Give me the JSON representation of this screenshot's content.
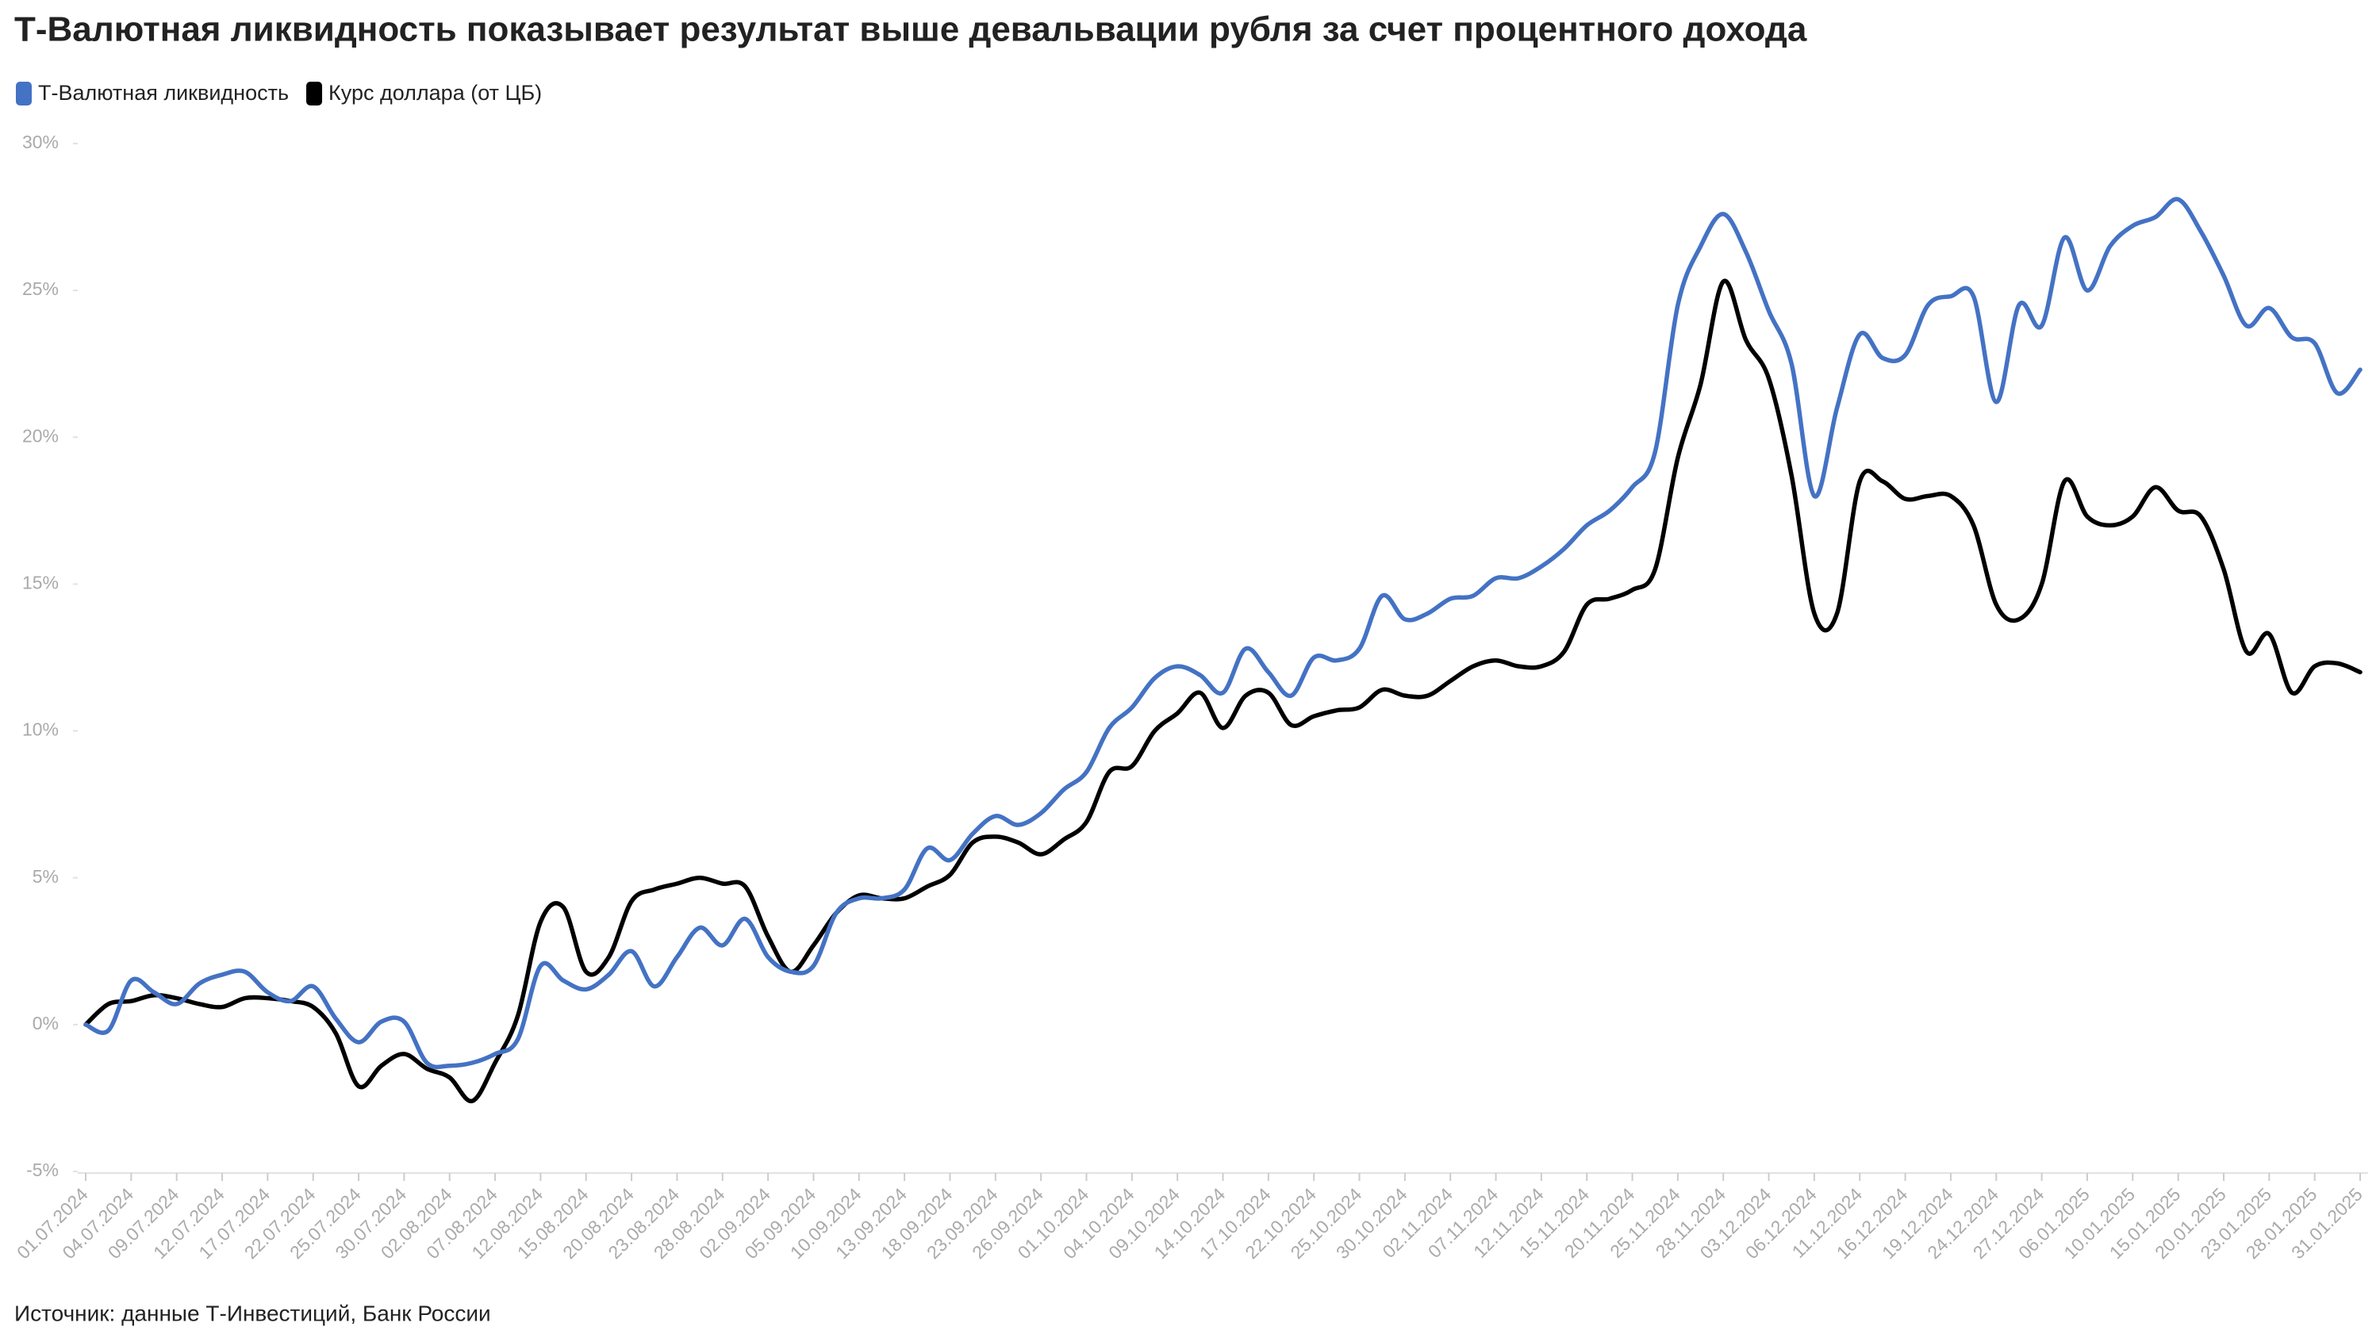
{
  "chart_data": {
    "type": "line",
    "title": "Т-Валютная ликвидность показывает результат выше девальвации рубля за счет процентного дохода",
    "source": "Источник: данные Т-Инвестиций, Банк России",
    "categories": [
      "01.07.2024",
      null,
      "04.07.2024",
      null,
      "09.07.2024",
      null,
      "12.07.2024",
      null,
      "17.07.2024",
      null,
      "22.07.2024",
      null,
      "25.07.2024",
      null,
      "30.07.2024",
      null,
      "02.08.2024",
      null,
      "07.08.2024",
      null,
      "12.08.2024",
      null,
      "15.08.2024",
      null,
      "20.08.2024",
      null,
      "23.08.2024",
      null,
      "28.08.2024",
      null,
      "02.09.2024",
      null,
      "05.09.2024",
      null,
      "10.09.2024",
      null,
      "13.09.2024",
      null,
      "18.09.2024",
      null,
      "23.09.2024",
      null,
      "26.09.2024",
      null,
      "01.10.2024",
      null,
      "04.10.2024",
      null,
      "09.10.2024",
      null,
      "14.10.2024",
      null,
      "17.10.2024",
      null,
      "22.10.2024",
      null,
      "25.10.2024",
      null,
      "30.10.2024",
      null,
      "02.11.2024",
      null,
      "07.11.2024",
      null,
      "12.11.2024",
      null,
      "15.11.2024",
      null,
      "20.11.2024",
      null,
      "25.11.2024",
      null,
      "28.11.2024",
      null,
      "03.12.2024",
      null,
      "06.12.2024",
      null,
      "11.12.2024",
      null,
      "16.12.2024",
      null,
      "19.12.2024",
      null,
      "24.12.2024",
      null,
      "27.12.2024",
      null,
      "06.01.2025",
      null,
      "10.01.2025",
      null,
      "15.01.2025",
      null,
      "20.01.2025",
      null,
      "23.01.2025",
      null,
      "28.01.2025",
      null,
      "31.01.2025"
    ],
    "series": [
      {
        "name": "Т-Валютная ликвидность",
        "color": "#4472c4",
        "values": [
          0,
          -0.2,
          1.5,
          1.1,
          0.7,
          1.4,
          1.7,
          1.8,
          1.1,
          0.8,
          1.3,
          0.2,
          -0.6,
          0.1,
          0.1,
          -1.3,
          -1.4,
          -1.3,
          -1.0,
          -0.5,
          2.0,
          1.5,
          1.2,
          1.7,
          2.5,
          1.3,
          2.3,
          3.3,
          2.7,
          3.6,
          2.3,
          1.8,
          2.0,
          3.8,
          4.3,
          4.3,
          4.6,
          6.0,
          5.6,
          6.5,
          7.1,
          6.8,
          7.2,
          8.0,
          8.6,
          10.1,
          10.8,
          11.8,
          12.2,
          11.9,
          11.3,
          12.8,
          12.0,
          11.2,
          12.5,
          12.4,
          12.8,
          14.6,
          13.8,
          14.0,
          14.5,
          14.6,
          15.2,
          15.2,
          15.6,
          16.2,
          17.0,
          17.5,
          18.3,
          19.5,
          24.5,
          26.5,
          27.6,
          26.3,
          24.3,
          22.5,
          18.0,
          21.0,
          23.5,
          22.7,
          22.8,
          24.5,
          24.8,
          24.8,
          21.2,
          24.5,
          23.8,
          26.8,
          25.0,
          26.5,
          27.2,
          27.5,
          28.1,
          27.0,
          25.5,
          23.8,
          24.4,
          23.4,
          23.2,
          21.5,
          22.3
        ]
      },
      {
        "name": "Курс доллара (от ЦБ)",
        "color": "#000000",
        "values": [
          0,
          0.7,
          0.8,
          1.0,
          0.9,
          0.7,
          0.6,
          0.9,
          0.9,
          0.8,
          0.6,
          -0.3,
          -2.1,
          -1.4,
          -1.0,
          -1.5,
          -1.8,
          -2.6,
          -1.3,
          0.3,
          3.5,
          4.0,
          1.8,
          2.3,
          4.2,
          4.6,
          4.8,
          5.0,
          4.8,
          4.7,
          3.0,
          1.8,
          2.7,
          3.8,
          4.4,
          4.3,
          4.3,
          4.7,
          5.1,
          6.2,
          6.4,
          6.2,
          5.8,
          6.3,
          6.9,
          8.6,
          8.8,
          10.0,
          10.6,
          11.3,
          10.1,
          11.2,
          11.3,
          10.2,
          10.5,
          10.7,
          10.8,
          11.4,
          11.2,
          11.2,
          11.7,
          12.2,
          12.4,
          12.2,
          12.2,
          12.7,
          14.3,
          14.5,
          14.8,
          15.5,
          19.3,
          21.8,
          25.3,
          23.3,
          22.0,
          18.7,
          14.0,
          14.0,
          18.5,
          18.5,
          17.9,
          18.0,
          18.0,
          17.0,
          14.3,
          13.8,
          15.0,
          18.5,
          17.3,
          17.0,
          17.3,
          18.3,
          17.5,
          17.3,
          15.5,
          12.7,
          13.3,
          11.3,
          12.2,
          12.3,
          12.0
        ]
      }
    ],
    "ylim": [
      -5,
      30
    ],
    "yticks": [
      {
        "value": -5,
        "label": "-5%"
      },
      {
        "value": 0,
        "label": "0%"
      },
      {
        "value": 5,
        "label": "5%"
      },
      {
        "value": 10,
        "label": "10%"
      },
      {
        "value": 15,
        "label": "15%"
      },
      {
        "value": 20,
        "label": "20%"
      },
      {
        "value": 25,
        "label": "25%"
      },
      {
        "value": 30,
        "label": "30%"
      }
    ],
    "legend": "top-left"
  }
}
